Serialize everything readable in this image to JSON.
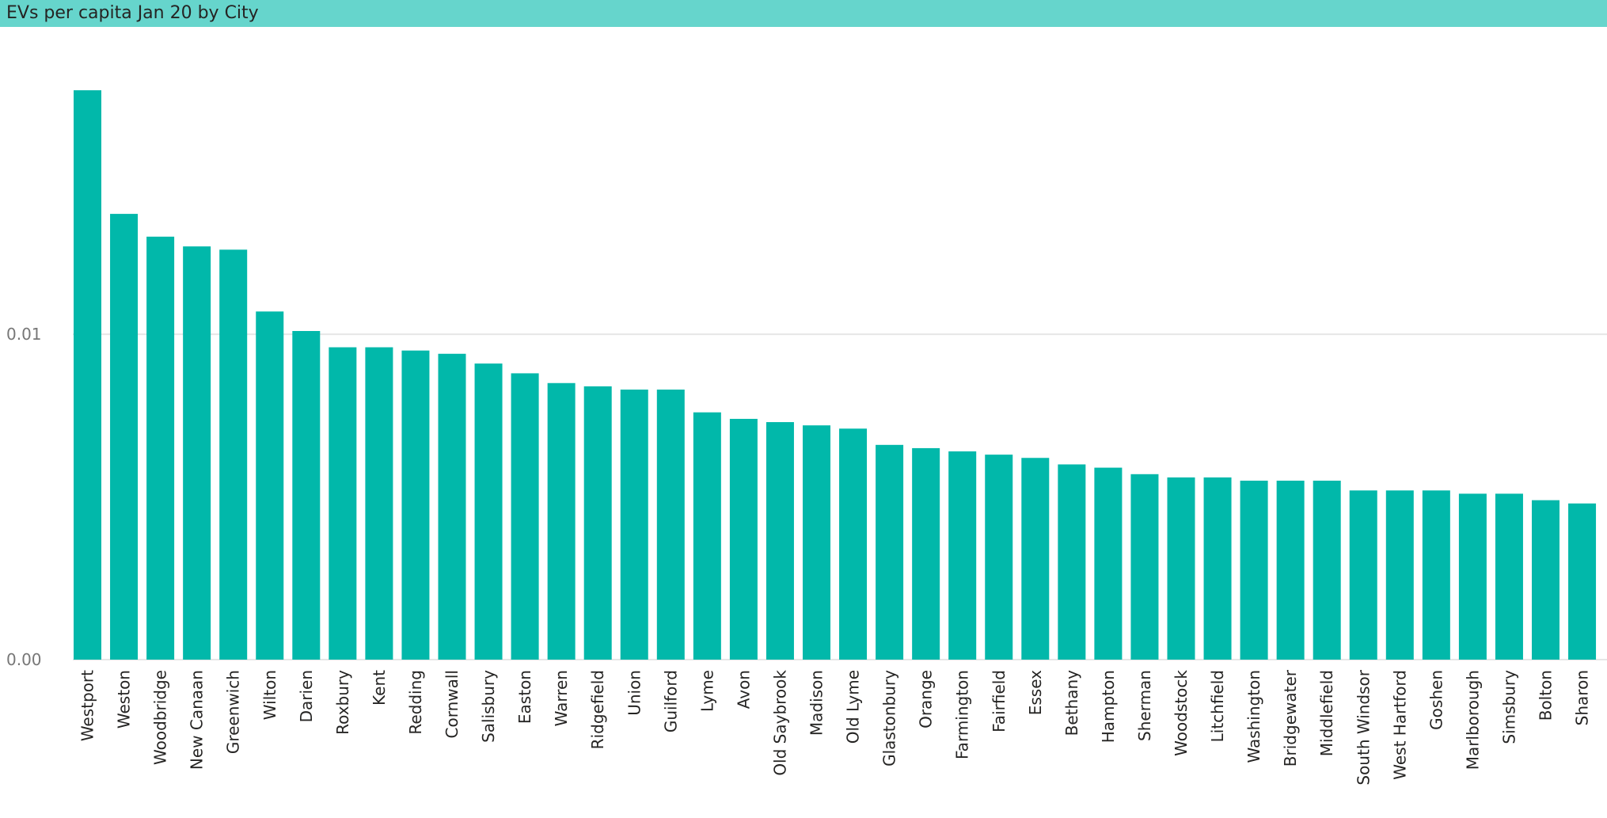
{
  "chart_data": {
    "type": "bar",
    "title": "EVs per capita Jan 20 by City",
    "xlabel": "",
    "ylabel": "",
    "ylim": [
      0,
      0.0193
    ],
    "yticks": [
      {
        "value": 0.0,
        "label": "0.00"
      },
      {
        "value": 0.01,
        "label": "0.01"
      }
    ],
    "grid": true,
    "color": "#01b8aa",
    "categories": [
      "Westport",
      "Weston",
      "Woodbridge",
      "New Canaan",
      "Greenwich",
      "Wilton",
      "Darien",
      "Roxbury",
      "Kent",
      "Redding",
      "Cornwall",
      "Salisbury",
      "Easton",
      "Warren",
      "Ridgefield",
      "Union",
      "Guilford",
      "Lyme",
      "Avon",
      "Old Saybrook",
      "Madison",
      "Old Lyme",
      "Glastonbury",
      "Orange",
      "Farmington",
      "Fairfield",
      "Essex",
      "Bethany",
      "Hampton",
      "Sherman",
      "Woodstock",
      "Litchfield",
      "Washington",
      "Bridgewater",
      "Middlefield",
      "South Windsor",
      "West Hartford",
      "Goshen",
      "Marlborough",
      "Simsbury",
      "Bolton",
      "Sharon"
    ],
    "values": [
      0.0175,
      0.0137,
      0.013,
      0.0127,
      0.0126,
      0.0107,
      0.0101,
      0.0096,
      0.0096,
      0.0095,
      0.0094,
      0.0091,
      0.0088,
      0.0085,
      0.0084,
      0.0083,
      0.0083,
      0.0076,
      0.0074,
      0.0073,
      0.0072,
      0.0071,
      0.0066,
      0.0065,
      0.0064,
      0.0063,
      0.0062,
      0.006,
      0.0059,
      0.0057,
      0.0056,
      0.0056,
      0.0055,
      0.0055,
      0.0055,
      0.0052,
      0.0052,
      0.0052,
      0.0051,
      0.0051,
      0.0049,
      0.0048
    ]
  }
}
